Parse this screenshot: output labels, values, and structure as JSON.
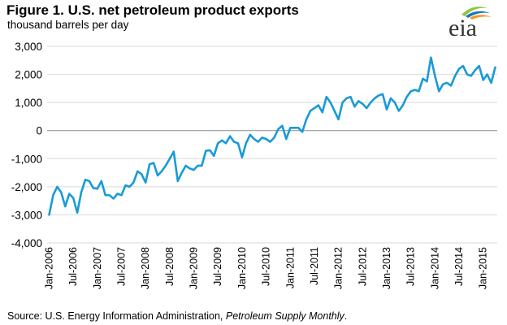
{
  "title": "Figure 1. U.S. net petroleum product exports",
  "subtitle": "thousand barrels per day",
  "logo": {
    "text": "eia",
    "icon": "eia-logo-icon",
    "colors": [
      "#8dc63f",
      "#1b75bc",
      "#f7941d",
      "#00a1de"
    ]
  },
  "source": {
    "prefix": "Source: U.S. Energy Information Administration, ",
    "publication": "Petroleum Supply Monthly",
    "suffix": "."
  },
  "chart_data": {
    "type": "line",
    "color": "#1a9ad7",
    "grid": "horizontal",
    "ylim": [
      -4000,
      3000
    ],
    "yticks": [
      -4000,
      -3000,
      -2000,
      -1000,
      0,
      1000,
      2000,
      3000
    ],
    "ytick_labels": [
      "-4,000",
      "-3,000",
      "-2,000",
      "-1,000",
      "0",
      "1,000",
      "2,000",
      "3,000"
    ],
    "xticks": [
      "Jan-2006",
      "Jul-2006",
      "Jan-2007",
      "Jul-2007",
      "Jan-2008",
      "Jul-2008",
      "Jan-2009",
      "Jul-2009",
      "Jan-2010",
      "Jul-2010",
      "Jan-2011",
      "Jul-2011",
      "Jan-2012",
      "Jul-2012",
      "Jan-2013",
      "Jul-2013",
      "Jan-2014",
      "Jul-2014",
      "Jan-2015"
    ],
    "x_start": "2006-01",
    "x_end": "2015-05",
    "series": [
      {
        "values": [
          -3000,
          -2300,
          -2000,
          -2200,
          -2700,
          -2250,
          -2400,
          -2920,
          -2200,
          -1750,
          -1800,
          -2050,
          -2070,
          -1800,
          -2300,
          -2300,
          -2420,
          -2250,
          -2300,
          -1950,
          -2000,
          -1850,
          -1450,
          -1550,
          -1850,
          -1200,
          -1150,
          -1600,
          -1450,
          -1250,
          -1000,
          -750,
          -1800,
          -1500,
          -1250,
          -1350,
          -1400,
          -1250,
          -1250,
          -720,
          -700,
          -900,
          -450,
          -350,
          -450,
          -200,
          -400,
          -450,
          -950,
          -450,
          -150,
          -300,
          -400,
          -250,
          -300,
          -400,
          -250,
          50,
          170,
          -300,
          100,
          100,
          100,
          -50,
          400,
          700,
          800,
          900,
          650,
          1200,
          1000,
          700,
          400,
          1000,
          1150,
          1200,
          850,
          1050,
          950,
          800,
          1000,
          1150,
          1250,
          1300,
          750,
          1150,
          1000,
          700,
          900,
          1200,
          1400,
          1450,
          1400,
          1850,
          1750,
          2600,
          1950,
          1400,
          1650,
          1700,
          1600,
          1950,
          2200,
          2300,
          2000,
          1950,
          2150,
          2300,
          1800,
          2000,
          1700,
          2250
        ]
      }
    ]
  }
}
